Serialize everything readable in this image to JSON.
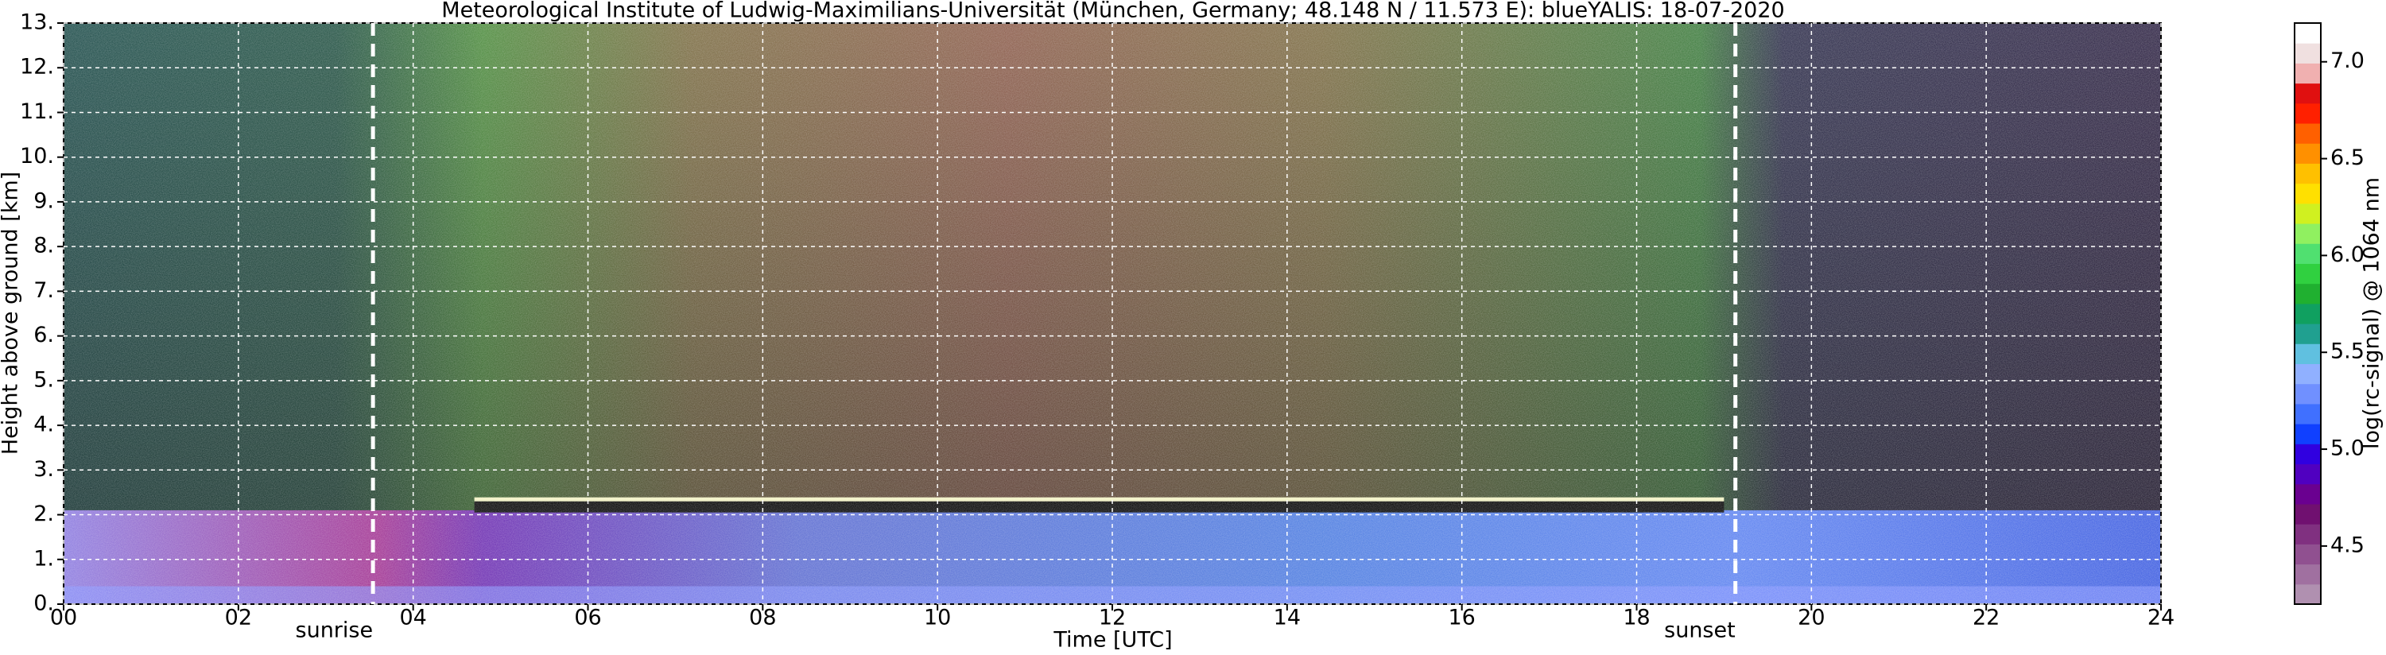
{
  "chart_data": {
    "type": "heatmap",
    "title": "Meteorological Institute of Ludwig-Maximilians-Universität (München, Germany; 48.148 N / 11.573 E):    blueYALIS: 18-07-2020",
    "xlabel": "Time [UTC]",
    "ylabel": "Height above ground [km]",
    "xlim": [
      0,
      24
    ],
    "xticks": [
      {
        "value": 0,
        "label": "00"
      },
      {
        "value": 2,
        "label": "02"
      },
      {
        "value": 4,
        "label": "04"
      },
      {
        "value": 6,
        "label": "06"
      },
      {
        "value": 8,
        "label": "08"
      },
      10,
      12,
      14,
      16,
      18,
      20,
      22,
      24
    ],
    "ylim": [
      0,
      13
    ],
    "yticks": [
      {
        "value": 0,
        "label": "0."
      },
      {
        "value": 1,
        "label": "1."
      },
      {
        "value": 2,
        "label": "2."
      },
      {
        "value": 3,
        "label": "3."
      },
      {
        "value": 4,
        "label": "4."
      },
      {
        "value": 5,
        "label": "5."
      },
      {
        "value": 6,
        "label": "6."
      },
      {
        "value": 7,
        "label": "7."
      },
      {
        "value": 8,
        "label": "8."
      },
      {
        "value": 9,
        "label": "9."
      },
      {
        "value": 10,
        "label": "10."
      },
      {
        "value": 11,
        "label": "11."
      },
      {
        "value": 12,
        "label": "12."
      },
      {
        "value": 13,
        "label": "13."
      }
    ],
    "grid": true,
    "annotations": [
      {
        "label": "sunrise",
        "x": 3.54
      },
      {
        "label": "sunset",
        "x": 19.13
      }
    ],
    "colorbar": {
      "label": "log(rc-signal) @ 1064 nm",
      "lim": [
        4.2,
        7.2
      ],
      "ticks": [
        4.5,
        {
          "value": 5,
          "label": "5.0"
        },
        5.5,
        {
          "value": 6,
          "label": "6.0"
        },
        6.5,
        {
          "value": 7,
          "label": "7.0"
        }
      ],
      "colors": [
        "#b090b0",
        "#a070a0",
        "#905090",
        "#803080",
        "#701070",
        "#6a0090",
        "#5000c0",
        "#3000e0",
        "#1040ff",
        "#4070ff",
        "#7090ff",
        "#90b0ff",
        "#60c0e0",
        "#20a090",
        "#10a060",
        "#20b030",
        "#30d040",
        "#50e070",
        "#90f060",
        "#d0f020",
        "#ffe000",
        "#ffc000",
        "#ff9000",
        "#ff6000",
        "#ff2000",
        "#e01010",
        "#f0b0b0",
        "#f0e0e0",
        "#ffffff"
      ]
    }
  }
}
